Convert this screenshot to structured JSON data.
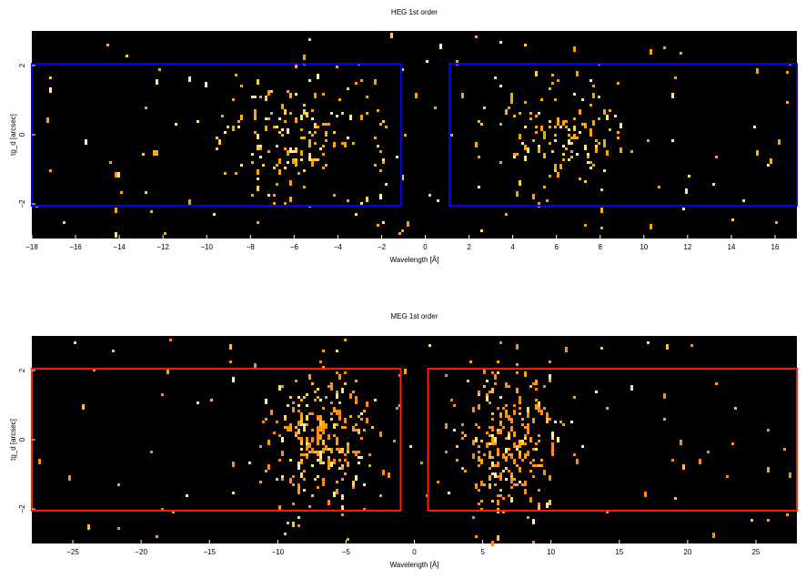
{
  "chart_data": [
    {
      "type": "heatmap",
      "title": "HEG 1st order",
      "xlabel": "Wavelength [Å]",
      "ylabel": "tg_d [arcsec]",
      "xlim": [
        -18,
        17
      ],
      "ylim": [
        -3,
        3
      ],
      "xticks": [
        -18,
        -16,
        -14,
        -12,
        -10,
        -8,
        -6,
        -4,
        -2,
        0,
        2,
        4,
        6,
        8,
        10,
        12,
        14,
        16
      ],
      "yticks": [
        -2,
        0,
        2
      ],
      "background": "#000000",
      "box_color": "#0000ff",
      "regions": [
        {
          "x0": -18,
          "x1": -1.1,
          "y0": -2.05,
          "y1": 2.05
        },
        {
          "x0": 1.1,
          "x1": 17,
          "y0": -2.05,
          "y1": 2.05
        }
      ],
      "event_clusters": [
        {
          "xc": -6.0,
          "xs": 2.2,
          "yc": 0.0,
          "ys": 0.9,
          "n": 150
        },
        {
          "xc": 6.2,
          "xs": 1.6,
          "yc": 0.0,
          "ys": 0.9,
          "n": 130
        }
      ],
      "background_events": 120,
      "colors": [
        "#ffa500",
        "#ffb300",
        "#ffd040",
        "#ffe680",
        "#fff2a8"
      ]
    },
    {
      "type": "heatmap",
      "title": "MEG 1st order",
      "xlabel": "Wavelength [Å]",
      "ylabel": "tg_d [arcsec]",
      "xlim": [
        -28,
        28
      ],
      "ylim": [
        -3,
        3
      ],
      "xticks": [
        -25,
        -20,
        -15,
        -10,
        -5,
        0,
        5,
        10,
        15,
        20,
        25
      ],
      "yticks": [
        -2,
        0,
        2
      ],
      "background": "#000000",
      "box_color": "#ff2000",
      "regions": [
        {
          "x0": -28,
          "x1": -1.0,
          "y0": -2.05,
          "y1": 2.05
        },
        {
          "x0": 1.0,
          "x1": 28,
          "y0": -2.05,
          "y1": 2.05
        }
      ],
      "event_clusters": [
        {
          "xc": -6.8,
          "xs": 2.0,
          "yc": 0.0,
          "ys": 1.0,
          "n": 260
        },
        {
          "xc": 6.8,
          "xs": 2.0,
          "yc": 0.0,
          "ys": 1.0,
          "n": 260
        }
      ],
      "background_events": 90,
      "colors": [
        "#ff8c1a",
        "#ffa500",
        "#ffc040",
        "#ffe066",
        "#fff5a0"
      ]
    }
  ]
}
